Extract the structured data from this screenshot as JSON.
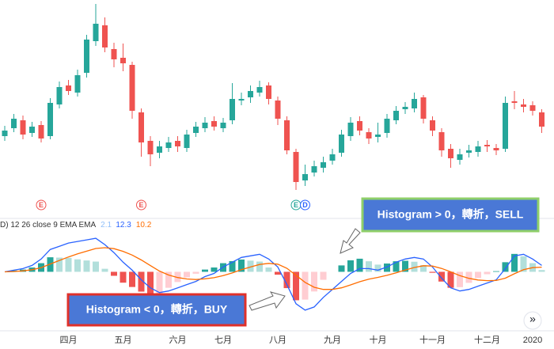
{
  "chart_data": [
    {
      "type": "candlestick",
      "categories": [
        null,
        null,
        null,
        null,
        null,
        null,
        null,
        "四月",
        null,
        null,
        null,
        null,
        null,
        "五月",
        null,
        null,
        null,
        null,
        null,
        "六月",
        null,
        null,
        null,
        null,
        "七月",
        null,
        null,
        null,
        null,
        null,
        "八月",
        null,
        null,
        null,
        null,
        null,
        "九月",
        null,
        null,
        null,
        null,
        "十月",
        null,
        null,
        null,
        null,
        null,
        "十一月",
        null,
        null,
        null,
        null,
        null,
        "十二月",
        null,
        null,
        null,
        null,
        "2020",
        null
      ],
      "open": [
        78,
        88,
        98,
        82,
        92,
        78,
        118,
        142,
        133,
        158,
        198,
        218,
        188,
        177,
        168,
        108,
        72,
        57,
        63,
        72,
        63,
        82,
        88,
        97,
        88,
        98,
        123,
        127,
        133,
        142,
        123,
        98,
        58,
        22,
        32,
        38,
        47,
        57,
        78,
        97,
        83,
        77,
        82,
        98,
        112,
        113,
        127,
        98,
        83,
        62,
        48,
        57,
        58,
        67,
        63,
        62,
        122,
        118,
        117,
        108
      ],
      "high": [
        91,
        106,
        104,
        96,
        97,
        126,
        147,
        149,
        162,
        206,
        245,
        228,
        196,
        195,
        172,
        113,
        78,
        72,
        77,
        78,
        86,
        96,
        102,
        103,
        101,
        145,
        133,
        142,
        148,
        146,
        128,
        103,
        62,
        42,
        47,
        52,
        62,
        86,
        102,
        103,
        88,
        95,
        106,
        116,
        121,
        133,
        130,
        103,
        88,
        68,
        62,
        67,
        72,
        73,
        68,
        128,
        135,
        125,
        122,
        112
      ],
      "low": [
        72,
        83,
        74,
        77,
        70,
        74,
        113,
        130,
        128,
        152,
        192,
        184,
        165,
        160,
        100,
        52,
        40,
        50,
        58,
        58,
        58,
        77,
        83,
        85,
        83,
        93,
        117,
        120,
        128,
        118,
        92,
        55,
        10,
        15,
        27,
        32,
        42,
        52,
        72,
        79,
        68,
        70,
        76,
        93,
        106,
        108,
        94,
        78,
        52,
        38,
        42,
        51,
        52,
        58,
        54,
        58,
        112,
        108,
        104,
        82
      ],
      "close": [
        85,
        100,
        80,
        90,
        75,
        120,
        140,
        135,
        155,
        200,
        220,
        190,
        175,
        170,
        110,
        70,
        55,
        65,
        70,
        65,
        80,
        90,
        95,
        90,
        95,
        125,
        125,
        135,
        140,
        125,
        100,
        60,
        20,
        30,
        40,
        45,
        55,
        80,
        95,
        85,
        75,
        80,
        100,
        110,
        115,
        125,
        100,
        85,
        60,
        50,
        55,
        60,
        65,
        65,
        60,
        120,
        120,
        115,
        110,
        90
      ],
      "up_color": "#26a69a",
      "down_color": "#ef5350",
      "ylim": [
        0,
        245
      ],
      "event_markers": [
        null,
        null,
        null,
        null,
        "E",
        null,
        null,
        null,
        null,
        null,
        null,
        null,
        null,
        null,
        null,
        "E",
        null,
        null,
        null,
        null,
        null,
        null,
        null,
        null,
        null,
        null,
        null,
        null,
        null,
        null,
        null,
        null,
        "E",
        "D",
        null,
        null,
        null,
        null,
        null,
        null,
        null,
        null,
        null,
        null,
        null,
        null,
        null,
        null,
        null,
        null,
        null,
        null,
        null,
        null,
        null,
        null,
        null,
        null,
        null,
        null
      ]
    },
    {
      "type": "macd",
      "legend_text": "D)  12 26 close 9 EMA EMA",
      "legend_values": [
        2.1,
        12.3,
        10.2
      ],
      "legend_colors": [
        "#90bff9",
        "#2962ff",
        "#ff6d00"
      ],
      "ylim": [
        -28,
        24
      ],
      "lines": [
        {
          "color": "#2962ff",
          "values": [
            0,
            1,
            2,
            4,
            8,
            14,
            16,
            18,
            19,
            20,
            21,
            17,
            12,
            6,
            1,
            -5,
            -10,
            -13,
            -12,
            -10,
            -8,
            -6,
            -3,
            -1,
            3,
            6,
            9,
            10,
            11,
            8,
            3,
            -8,
            -20,
            -24,
            -22,
            -16,
            -11,
            -6,
            -1,
            2,
            2,
            1,
            3,
            6,
            8,
            9,
            8,
            3,
            -4,
            -10,
            -12,
            -11,
            -9,
            -7,
            -5,
            2,
            10,
            11,
            8,
            4
          ]
        },
        {
          "color": "#ff6d00",
          "values": [
            0,
            0.2,
            0.6,
            1.3,
            2.6,
            4.9,
            7.1,
            9.3,
            11.2,
            12.9,
            14.6,
            15.1,
            14.5,
            12.8,
            10.5,
            7.4,
            3.9,
            0.5,
            -2,
            -3.6,
            -4.5,
            -4.8,
            -4.4,
            -3.7,
            -2.4,
            -0.7,
            1.3,
            3,
            4.6,
            5.3,
            4.8,
            2.2,
            -2.2,
            -6.6,
            -9.7,
            -11,
            -11,
            -10,
            -8.2,
            -6.2,
            -4.6,
            -3.5,
            -2.2,
            -0.6,
            1.1,
            2.7,
            3.8,
            3.6,
            2.1,
            0,
            -2.4,
            -4.1,
            -5.1,
            -5.5,
            -5.4,
            -4,
            -1.2,
            1.3,
            2.6,
            2.9
          ]
        }
      ],
      "histogram": {
        "values": [
          0,
          0.8,
          1.4,
          2.7,
          5.4,
          9.1,
          8.9,
          8.7,
          7.8,
          7.1,
          6.4,
          1.9,
          -2.5,
          -6.8,
          -9.5,
          -12.4,
          -13.9,
          -13.5,
          -10,
          -6.4,
          -3.5,
          -1.2,
          1.4,
          2.7,
          5.4,
          6.7,
          7.7,
          7,
          6.4,
          2.7,
          -1.8,
          -10.2,
          -17.8,
          -17.4,
          -12.3,
          -5,
          0,
          4,
          7.2,
          8.2,
          6.6,
          4.5,
          5.2,
          6.6,
          6.9,
          6.3,
          4.2,
          -0.6,
          -6.1,
          -10,
          -9.6,
          -6.9,
          -3.9,
          -1.5,
          0.4,
          6,
          11.2,
          9.7,
          5.4,
          1.1
        ],
        "colors": {
          "pos_up": "#26a69a",
          "pos_down": "#b2dfdb",
          "neg_down": "#ef5350",
          "neg_up": "#ffcdd2"
        }
      }
    }
  ],
  "annotations": [
    "Histogram > 0，轉折，SELL",
    "Histogram < 0，轉折，BUY"
  ],
  "scroll_button": "»"
}
